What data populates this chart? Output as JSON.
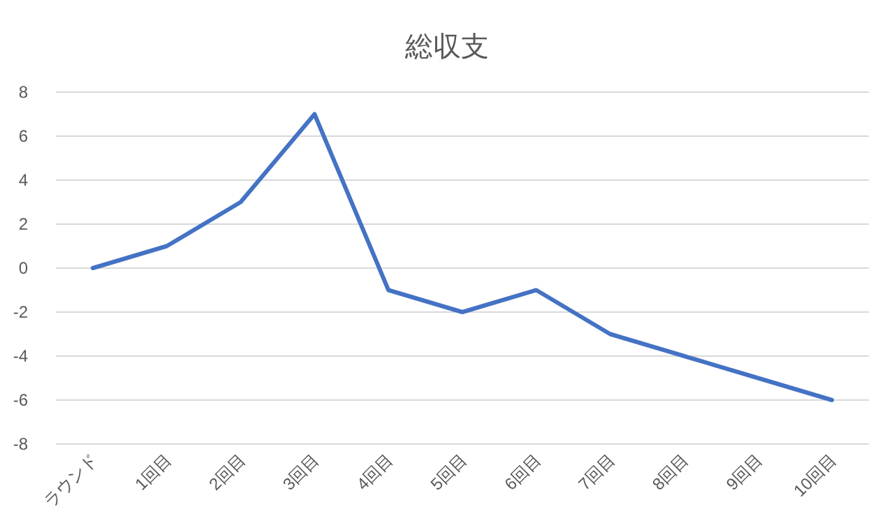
{
  "chart_data": {
    "type": "line",
    "title": "総収支",
    "categories": [
      "ラウンド",
      "1回目",
      "2回目",
      "3回目",
      "4回目",
      "5回目",
      "6回目",
      "7回目",
      "8回目",
      "9回目",
      "10回目"
    ],
    "series": [
      {
        "color": "#4472c4",
        "values": [
          0,
          1,
          3,
          7,
          -1,
          -2,
          -1,
          -3,
          -4,
          -5,
          -6
        ]
      }
    ],
    "ylim": [
      -8,
      8
    ],
    "yticks": [
      -8,
      -6,
      -4,
      -2,
      0,
      2,
      4,
      6,
      8
    ],
    "grid": "y",
    "marker": "none",
    "line_style": "solid"
  }
}
